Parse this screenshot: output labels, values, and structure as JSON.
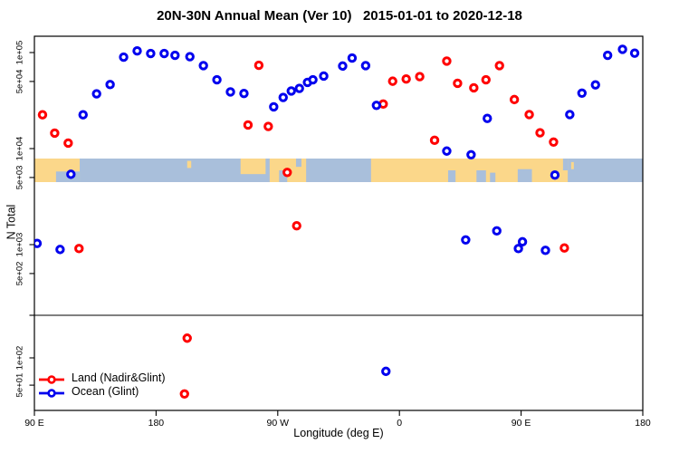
{
  "title": "20N-30N Annual Mean (Ver 10)   2015-01-01 to 2020-12-18",
  "chart_data": {
    "type": "scatter",
    "title": "20N-30N Annual Mean (Ver 10)   2015-01-01 to 2020-12-18",
    "xlabel": "Longitude (deg E)",
    "ylabel": "N Total",
    "grid": false,
    "x_axis": {
      "range": [
        90,
        540
      ],
      "ticks": [
        {
          "lon": 90,
          "label": "90 E"
        },
        {
          "lon": 180,
          "label": "180"
        },
        {
          "lon": 270,
          "label": "90 W"
        },
        {
          "lon": 360,
          "label": "0"
        },
        {
          "lon": 450,
          "label": "90 E"
        },
        {
          "lon": 540,
          "label": "180"
        }
      ]
    },
    "y_axis": {
      "scale": "log-broken",
      "upper_ticks": [
        {
          "v": 100000,
          "label": "1e+05"
        },
        {
          "v": 50000,
          "label": "5e+04"
        },
        {
          "v": 10000,
          "label": "1e+04"
        },
        {
          "v": 5000,
          "label": "5e+03"
        },
        {
          "v": 1000,
          "label": "1e+03"
        },
        {
          "v": 500,
          "label": "5e+02"
        }
      ],
      "lower_ticks": [
        {
          "v": 100,
          "label": "1e+02"
        },
        {
          "v": 50,
          "label": "5e+01"
        }
      ]
    },
    "series": [
      {
        "name": "Land (Nadir&Glint)",
        "color": "#FF0000",
        "point_format": [
          "longitude_deg_east_from_90",
          "n_total"
        ],
        "points": [
          [
            96,
            22500
          ],
          [
            105,
            14500
          ],
          [
            115,
            11400
          ],
          [
            123,
            910
          ],
          [
            201,
            40
          ],
          [
            203,
            165
          ],
          [
            248,
            17600
          ],
          [
            256,
            73600
          ],
          [
            263,
            17000
          ],
          [
            277,
            5650
          ],
          [
            284,
            1570
          ],
          [
            348,
            29100
          ],
          [
            355,
            50300
          ],
          [
            365,
            53000
          ],
          [
            375,
            56100
          ],
          [
            386,
            12200
          ],
          [
            395,
            81500
          ],
          [
            403,
            47800
          ],
          [
            415,
            42900
          ],
          [
            424,
            52100
          ],
          [
            434,
            73100
          ],
          [
            445,
            32400
          ],
          [
            456,
            22600
          ],
          [
            464,
            14600
          ],
          [
            474,
            11700
          ],
          [
            482,
            923
          ]
        ]
      },
      {
        "name": "Ocean (Glint)",
        "color": "#0000EE",
        "point_format": [
          "longitude_deg_east_from_90",
          "n_total"
        ],
        "points": [
          [
            92,
            1030
          ],
          [
            109,
            890
          ],
          [
            117,
            5400
          ],
          [
            126,
            22500
          ],
          [
            136,
            37200
          ],
          [
            146,
            46400
          ],
          [
            156,
            89600
          ],
          [
            166,
            104000
          ],
          [
            176,
            97800
          ],
          [
            186,
            97800
          ],
          [
            194,
            93600
          ],
          [
            205,
            90600
          ],
          [
            215,
            73100
          ],
          [
            225,
            52100
          ],
          [
            235,
            38900
          ],
          [
            245,
            37500
          ],
          [
            267,
            27200
          ],
          [
            274,
            34100
          ],
          [
            280,
            39800
          ],
          [
            286,
            42300
          ],
          [
            292,
            48900
          ],
          [
            296,
            52100
          ],
          [
            304,
            56900
          ],
          [
            318,
            72400
          ],
          [
            325,
            87700
          ],
          [
            335,
            73100
          ],
          [
            343,
            28200
          ],
          [
            350,
            71
          ],
          [
            395,
            9420
          ],
          [
            409,
            1120
          ],
          [
            413,
            8630
          ],
          [
            425,
            20600
          ],
          [
            432,
            1390
          ],
          [
            448,
            910
          ],
          [
            451,
            1070
          ],
          [
            468,
            871
          ],
          [
            475,
            5300
          ],
          [
            486,
            22600
          ],
          [
            495,
            37800
          ],
          [
            505,
            46100
          ],
          [
            514,
            93600
          ],
          [
            525,
            108000
          ],
          [
            534,
            98600
          ]
        ]
      }
    ],
    "map_band": {
      "description": "20N-30N land/ocean strip",
      "ocean_color": "#A9BFDB",
      "land_color": "#FBD78A",
      "patch_format": [
        "from_lon",
        "to_lon",
        "top_frac",
        "bottom_frac"
      ],
      "land_patches": [
        [
          90,
          123.5,
          0,
          1
        ],
        [
          203,
          206,
          0.1,
          0.4
        ],
        [
          242.5,
          261,
          0,
          0.66
        ],
        [
          264,
          291,
          0,
          1
        ],
        [
          339,
          484.5,
          0,
          1
        ],
        [
          487,
          489,
          0.15,
          0.45
        ]
      ],
      "ocean_notches": [
        [
          106,
          123.5,
          0.55,
          1
        ],
        [
          271,
          277,
          0.5,
          1
        ],
        [
          283.5,
          287.5,
          0,
          0.35
        ],
        [
          396,
          401.5,
          0.5,
          1
        ],
        [
          417,
          424,
          0.5,
          1
        ],
        [
          427,
          431,
          0.6,
          1
        ],
        [
          447.5,
          458,
          0.45,
          1
        ],
        [
          481,
          484.5,
          0,
          0.5
        ]
      ]
    },
    "legend": {
      "position": "bottom-left",
      "items": [
        {
          "label": "Land (Nadir&Glint)",
          "color": "#FF0000"
        },
        {
          "label": "Ocean (Glint)",
          "color": "#0000EE"
        }
      ]
    }
  }
}
